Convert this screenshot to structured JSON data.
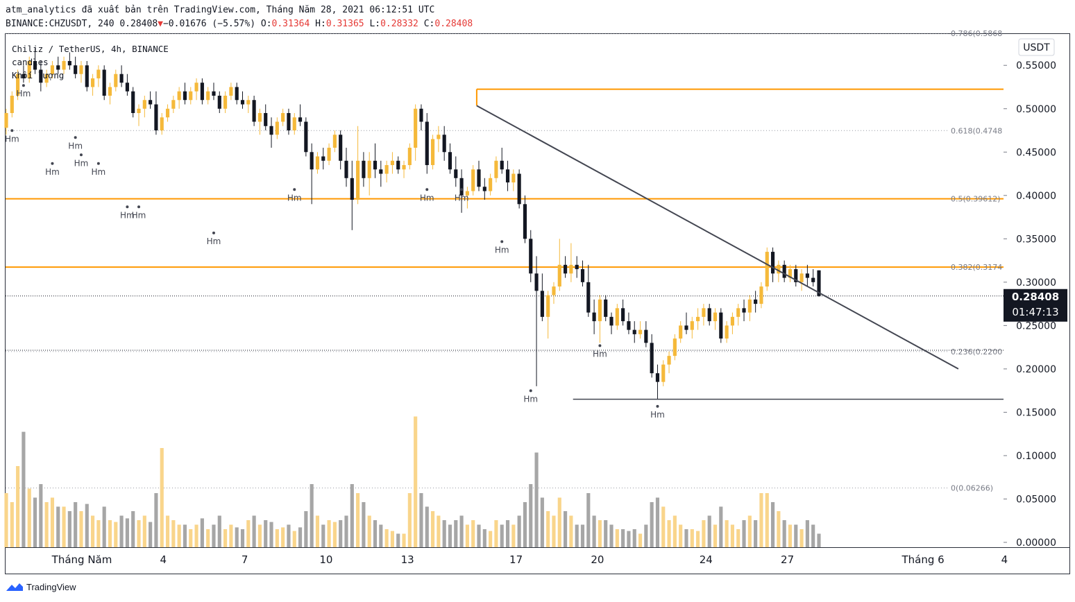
{
  "header": {
    "publish_line": "atm_analytics đã xuất bản trên TradingView.com, Tháng Năm 28, 2021 06:12:51 UTC",
    "symbol_prefix": "BINANCE:CHZUSDT, 240 0.28408",
    "change_arrow": "▼",
    "change": "−0.01676 (−5.57%)",
    "o_label": "O:",
    "o_val": "0.31364",
    "h_label": "H:",
    "h_val": "0.31365",
    "l_label": "L:",
    "l_val": "0.28332",
    "c_label": "C:",
    "c_val": "0.28408"
  },
  "legend": {
    "line1": "Chiliz / TetherUS, 4h, BINANCE",
    "line2": "candles",
    "line3": "Khối lượng"
  },
  "price_axis": {
    "currency": "USDT",
    "current_price": "0.28408",
    "countdown": "01:47:13"
  },
  "footer": {
    "brand": "TradingView"
  },
  "colors": {
    "up": "#f5b93a",
    "down": "#131722",
    "fib": "#ff9800",
    "vol_up": "#f9d58b",
    "vol_down": "#a6a6a6",
    "trendline": "#434651"
  },
  "chart_data": {
    "type": "candlestick",
    "title": "Chiliz / TetherUS, 4h, BINANCE",
    "ylim": [
      0,
      0.59
    ],
    "y_ticks": [
      "0.55000",
      "0.50000",
      "0.45000",
      "0.40000",
      "0.35000",
      "0.30000",
      "0.25000",
      "0.20000",
      "0.15000",
      "0.10000",
      "0.05000",
      "0.00000"
    ],
    "y_tick_values": [
      0.55,
      0.5,
      0.45,
      0.4,
      0.35,
      0.3,
      0.25,
      0.2,
      0.15,
      0.1,
      0.05,
      0.0
    ],
    "x_labels": [
      "Tháng Năm",
      "4",
      "7",
      "10",
      "13",
      "17",
      "20",
      "24",
      "27",
      "Tháng 6",
      "4"
    ],
    "x_label_days": [
      1,
      4,
      7,
      10,
      13,
      17,
      20,
      24,
      27,
      32,
      35
    ],
    "x_range_days": [
      0.7,
      34.3
    ],
    "fib_levels": [
      {
        "label": "0.786(0.5868",
        "value": 0.5868,
        "line": false
      },
      {
        "label": "0.618(0.4748",
        "value": 0.4748,
        "line": false
      },
      {
        "label": "0.5(0.39612)",
        "value": 0.39612,
        "line": true
      },
      {
        "label": "0.382(0.3174",
        "value": 0.3174,
        "line": true
      },
      {
        "label": "0.236(0.2200",
        "value": 0.22,
        "line": false
      },
      {
        "label": "0(0.06266)",
        "value": 0.06266,
        "line": false
      }
    ],
    "top_fib_line": {
      "value": 0.5225,
      "start_day": 15.55
    },
    "trendline": {
      "start": [
        15.55,
        0.5035
      ],
      "end": [
        33.3,
        0.2
      ],
      "note": "descending"
    },
    "support_line": {
      "value": 0.165,
      "start_day": 19.1,
      "end_day": 34.3
    },
    "low_marker_labels": [
      "Hm",
      "Hm",
      "Hm",
      "Hm",
      "Hm",
      "Hm",
      "Hm",
      "Hm",
      "Hm",
      "Hm",
      "Hm",
      "Hm",
      "Hm",
      "Hm",
      "Hm",
      "Hm"
    ],
    "candles": [
      [
        0.478,
        0.5,
        0.47,
        0.495,
        0.06
      ],
      [
        0.495,
        0.52,
        0.49,
        0.515,
        0.05
      ],
      [
        0.515,
        0.545,
        0.51,
        0.54,
        0.09
      ],
      [
        0.54,
        0.55,
        0.53,
        0.535,
        0.128
      ],
      [
        0.535,
        0.56,
        0.53,
        0.555,
        0.065
      ],
      [
        0.555,
        0.57,
        0.54,
        0.545,
        0.055
      ],
      [
        0.545,
        0.555,
        0.52,
        0.53,
        0.07
      ],
      [
        0.53,
        0.545,
        0.525,
        0.54,
        0.05
      ],
      [
        0.54,
        0.555,
        0.535,
        0.55,
        0.055
      ],
      [
        0.55,
        0.56,
        0.54,
        0.545,
        0.045
      ],
      [
        0.545,
        0.56,
        0.54,
        0.555,
        0.045
      ],
      [
        0.555,
        0.565,
        0.545,
        0.55,
        0.04
      ],
      [
        0.55,
        0.56,
        0.535,
        0.54,
        0.05
      ],
      [
        0.54,
        0.555,
        0.53,
        0.55,
        0.04
      ],
      [
        0.55,
        0.555,
        0.52,
        0.525,
        0.048
      ],
      [
        0.525,
        0.54,
        0.515,
        0.535,
        0.035
      ],
      [
        0.535,
        0.55,
        0.525,
        0.545,
        0.03
      ],
      [
        0.545,
        0.55,
        0.51,
        0.515,
        0.045
      ],
      [
        0.515,
        0.53,
        0.505,
        0.525,
        0.03
      ],
      [
        0.525,
        0.545,
        0.52,
        0.54,
        0.028
      ],
      [
        0.54,
        0.55,
        0.525,
        0.53,
        0.035
      ],
      [
        0.53,
        0.54,
        0.515,
        0.52,
        0.032
      ],
      [
        0.52,
        0.525,
        0.49,
        0.495,
        0.04
      ],
      [
        0.495,
        0.505,
        0.48,
        0.5,
        0.03
      ],
      [
        0.5,
        0.515,
        0.49,
        0.51,
        0.035
      ],
      [
        0.51,
        0.52,
        0.5,
        0.505,
        0.028
      ],
      [
        0.505,
        0.52,
        0.47,
        0.475,
        0.06
      ],
      [
        0.475,
        0.495,
        0.47,
        0.49,
        0.11
      ],
      [
        0.49,
        0.505,
        0.485,
        0.5,
        0.035
      ],
      [
        0.5,
        0.515,
        0.495,
        0.51,
        0.03
      ],
      [
        0.51,
        0.525,
        0.5,
        0.52,
        0.025
      ],
      [
        0.52,
        0.53,
        0.505,
        0.51,
        0.025
      ],
      [
        0.51,
        0.525,
        0.505,
        0.52,
        0.02
      ],
      [
        0.52,
        0.535,
        0.51,
        0.53,
        0.025
      ],
      [
        0.53,
        0.535,
        0.505,
        0.51,
        0.032
      ],
      [
        0.51,
        0.525,
        0.505,
        0.52,
        0.02
      ],
      [
        0.52,
        0.53,
        0.51,
        0.515,
        0.025
      ],
      [
        0.515,
        0.52,
        0.495,
        0.5,
        0.035
      ],
      [
        0.5,
        0.52,
        0.495,
        0.515,
        0.02
      ],
      [
        0.515,
        0.53,
        0.51,
        0.525,
        0.025
      ],
      [
        0.525,
        0.53,
        0.505,
        0.51,
        0.022
      ],
      [
        0.51,
        0.52,
        0.5,
        0.505,
        0.02
      ],
      [
        0.505,
        0.515,
        0.495,
        0.51,
        0.03
      ],
      [
        0.51,
        0.515,
        0.48,
        0.485,
        0.035
      ],
      [
        0.485,
        0.5,
        0.47,
        0.495,
        0.025
      ],
      [
        0.495,
        0.505,
        0.475,
        0.48,
        0.03
      ],
      [
        0.48,
        0.49,
        0.455,
        0.47,
        0.028
      ],
      [
        0.47,
        0.49,
        0.465,
        0.485,
        0.02
      ],
      [
        0.485,
        0.5,
        0.48,
        0.495,
        0.022
      ],
      [
        0.495,
        0.5,
        0.47,
        0.475,
        0.025
      ],
      [
        0.475,
        0.495,
        0.47,
        0.49,
        0.018
      ],
      [
        0.49,
        0.505,
        0.48,
        0.485,
        0.022
      ],
      [
        0.485,
        0.49,
        0.445,
        0.45,
        0.04
      ],
      [
        0.45,
        0.46,
        0.39,
        0.43,
        0.07
      ],
      [
        0.43,
        0.45,
        0.425,
        0.445,
        0.035
      ],
      [
        0.445,
        0.455,
        0.43,
        0.44,
        0.025
      ],
      [
        0.44,
        0.46,
        0.435,
        0.455,
        0.03
      ],
      [
        0.455,
        0.475,
        0.45,
        0.47,
        0.028
      ],
      [
        0.47,
        0.475,
        0.43,
        0.44,
        0.03
      ],
      [
        0.44,
        0.455,
        0.41,
        0.42,
        0.035
      ],
      [
        0.42,
        0.44,
        0.36,
        0.395,
        0.07
      ],
      [
        0.395,
        0.48,
        0.39,
        0.44,
        0.06
      ],
      [
        0.44,
        0.45,
        0.41,
        0.42,
        0.05
      ],
      [
        0.42,
        0.45,
        0.4,
        0.44,
        0.035
      ],
      [
        0.44,
        0.46,
        0.42,
        0.43,
        0.03
      ],
      [
        0.43,
        0.44,
        0.41,
        0.425,
        0.025
      ],
      [
        0.425,
        0.44,
        0.415,
        0.435,
        0.02
      ],
      [
        0.435,
        0.45,
        0.425,
        0.44,
        0.018
      ],
      [
        0.44,
        0.445,
        0.425,
        0.43,
        0.015
      ],
      [
        0.43,
        0.44,
        0.42,
        0.435,
        0.015
      ],
      [
        0.435,
        0.46,
        0.43,
        0.455,
        0.06
      ],
      [
        0.455,
        0.505,
        0.44,
        0.5,
        0.145
      ],
      [
        0.5,
        0.505,
        0.475,
        0.485,
        0.06
      ],
      [
        0.485,
        0.495,
        0.425,
        0.435,
        0.045
      ],
      [
        0.435,
        0.47,
        0.43,
        0.465,
        0.04
      ],
      [
        0.465,
        0.48,
        0.45,
        0.47,
        0.035
      ],
      [
        0.47,
        0.48,
        0.44,
        0.45,
        0.03
      ],
      [
        0.45,
        0.46,
        0.425,
        0.43,
        0.025
      ],
      [
        0.43,
        0.445,
        0.41,
        0.42,
        0.03
      ],
      [
        0.42,
        0.43,
        0.38,
        0.4,
        0.035
      ],
      [
        0.4,
        0.41,
        0.385,
        0.405,
        0.025
      ],
      [
        0.405,
        0.435,
        0.4,
        0.43,
        0.03
      ],
      [
        0.43,
        0.44,
        0.405,
        0.41,
        0.025
      ],
      [
        0.41,
        0.42,
        0.395,
        0.405,
        0.02
      ],
      [
        0.405,
        0.425,
        0.4,
        0.42,
        0.018
      ],
      [
        0.42,
        0.445,
        0.415,
        0.44,
        0.03
      ],
      [
        0.44,
        0.455,
        0.425,
        0.43,
        0.025
      ],
      [
        0.43,
        0.44,
        0.405,
        0.415,
        0.03
      ],
      [
        0.415,
        0.43,
        0.405,
        0.425,
        0.025
      ],
      [
        0.425,
        0.43,
        0.385,
        0.39,
        0.035
      ],
      [
        0.39,
        0.4,
        0.345,
        0.35,
        0.05
      ],
      [
        0.35,
        0.36,
        0.3,
        0.31,
        0.07
      ],
      [
        0.31,
        0.33,
        0.18,
        0.29,
        0.105
      ],
      [
        0.29,
        0.31,
        0.255,
        0.26,
        0.055
      ],
      [
        0.26,
        0.29,
        0.235,
        0.285,
        0.04
      ],
      [
        0.285,
        0.3,
        0.275,
        0.295,
        0.035
      ],
      [
        0.295,
        0.35,
        0.29,
        0.32,
        0.055
      ],
      [
        0.32,
        0.33,
        0.305,
        0.31,
        0.04
      ],
      [
        0.31,
        0.345,
        0.3,
        0.32,
        0.035
      ],
      [
        0.32,
        0.33,
        0.305,
        0.315,
        0.025
      ],
      [
        0.315,
        0.325,
        0.295,
        0.3,
        0.025
      ],
      [
        0.3,
        0.32,
        0.26,
        0.265,
        0.06
      ],
      [
        0.265,
        0.28,
        0.24,
        0.255,
        0.035
      ],
      [
        0.255,
        0.285,
        0.23,
        0.28,
        0.03
      ],
      [
        0.28,
        0.285,
        0.255,
        0.26,
        0.03
      ],
      [
        0.26,
        0.265,
        0.24,
        0.25,
        0.025
      ],
      [
        0.25,
        0.275,
        0.245,
        0.27,
        0.02
      ],
      [
        0.27,
        0.28,
        0.25,
        0.255,
        0.02
      ],
      [
        0.255,
        0.265,
        0.24,
        0.245,
        0.018
      ],
      [
        0.245,
        0.255,
        0.23,
        0.24,
        0.02
      ],
      [
        0.24,
        0.255,
        0.235,
        0.245,
        0.015
      ],
      [
        0.245,
        0.255,
        0.225,
        0.23,
        0.025
      ],
      [
        0.23,
        0.24,
        0.19,
        0.195,
        0.05
      ],
      [
        0.195,
        0.205,
        0.165,
        0.185,
        0.055
      ],
      [
        0.185,
        0.21,
        0.18,
        0.205,
        0.045
      ],
      [
        0.205,
        0.22,
        0.195,
        0.215,
        0.03
      ],
      [
        0.215,
        0.24,
        0.21,
        0.235,
        0.035
      ],
      [
        0.235,
        0.255,
        0.23,
        0.25,
        0.025
      ],
      [
        0.25,
        0.265,
        0.24,
        0.245,
        0.02
      ],
      [
        0.245,
        0.26,
        0.235,
        0.255,
        0.02
      ],
      [
        0.255,
        0.27,
        0.245,
        0.26,
        0.018
      ],
      [
        0.26,
        0.275,
        0.25,
        0.27,
        0.03
      ],
      [
        0.27,
        0.275,
        0.25,
        0.255,
        0.035
      ],
      [
        0.255,
        0.27,
        0.245,
        0.265,
        0.025
      ],
      [
        0.265,
        0.27,
        0.23,
        0.235,
        0.045
      ],
      [
        0.235,
        0.255,
        0.23,
        0.25,
        0.03
      ],
      [
        0.25,
        0.265,
        0.24,
        0.26,
        0.025
      ],
      [
        0.26,
        0.275,
        0.25,
        0.27,
        0.02
      ],
      [
        0.27,
        0.28,
        0.255,
        0.265,
        0.03
      ],
      [
        0.265,
        0.285,
        0.255,
        0.28,
        0.035
      ],
      [
        0.28,
        0.29,
        0.265,
        0.275,
        0.03
      ],
      [
        0.275,
        0.3,
        0.27,
        0.295,
        0.06
      ],
      [
        0.295,
        0.34,
        0.29,
        0.335,
        0.06
      ],
      [
        0.335,
        0.34,
        0.3,
        0.31,
        0.05
      ],
      [
        0.31,
        0.325,
        0.3,
        0.32,
        0.04
      ],
      [
        0.32,
        0.325,
        0.3,
        0.305,
        0.03
      ],
      [
        0.305,
        0.32,
        0.3,
        0.315,
        0.025
      ],
      [
        0.315,
        0.32,
        0.295,
        0.3,
        0.025
      ],
      [
        0.3,
        0.315,
        0.29,
        0.31,
        0.02
      ],
      [
        0.31,
        0.32,
        0.295,
        0.305,
        0.03
      ],
      [
        0.305,
        0.315,
        0.295,
        0.3,
        0.025
      ],
      [
        0.31364,
        0.31365,
        0.28332,
        0.28408,
        0.015
      ]
    ]
  }
}
